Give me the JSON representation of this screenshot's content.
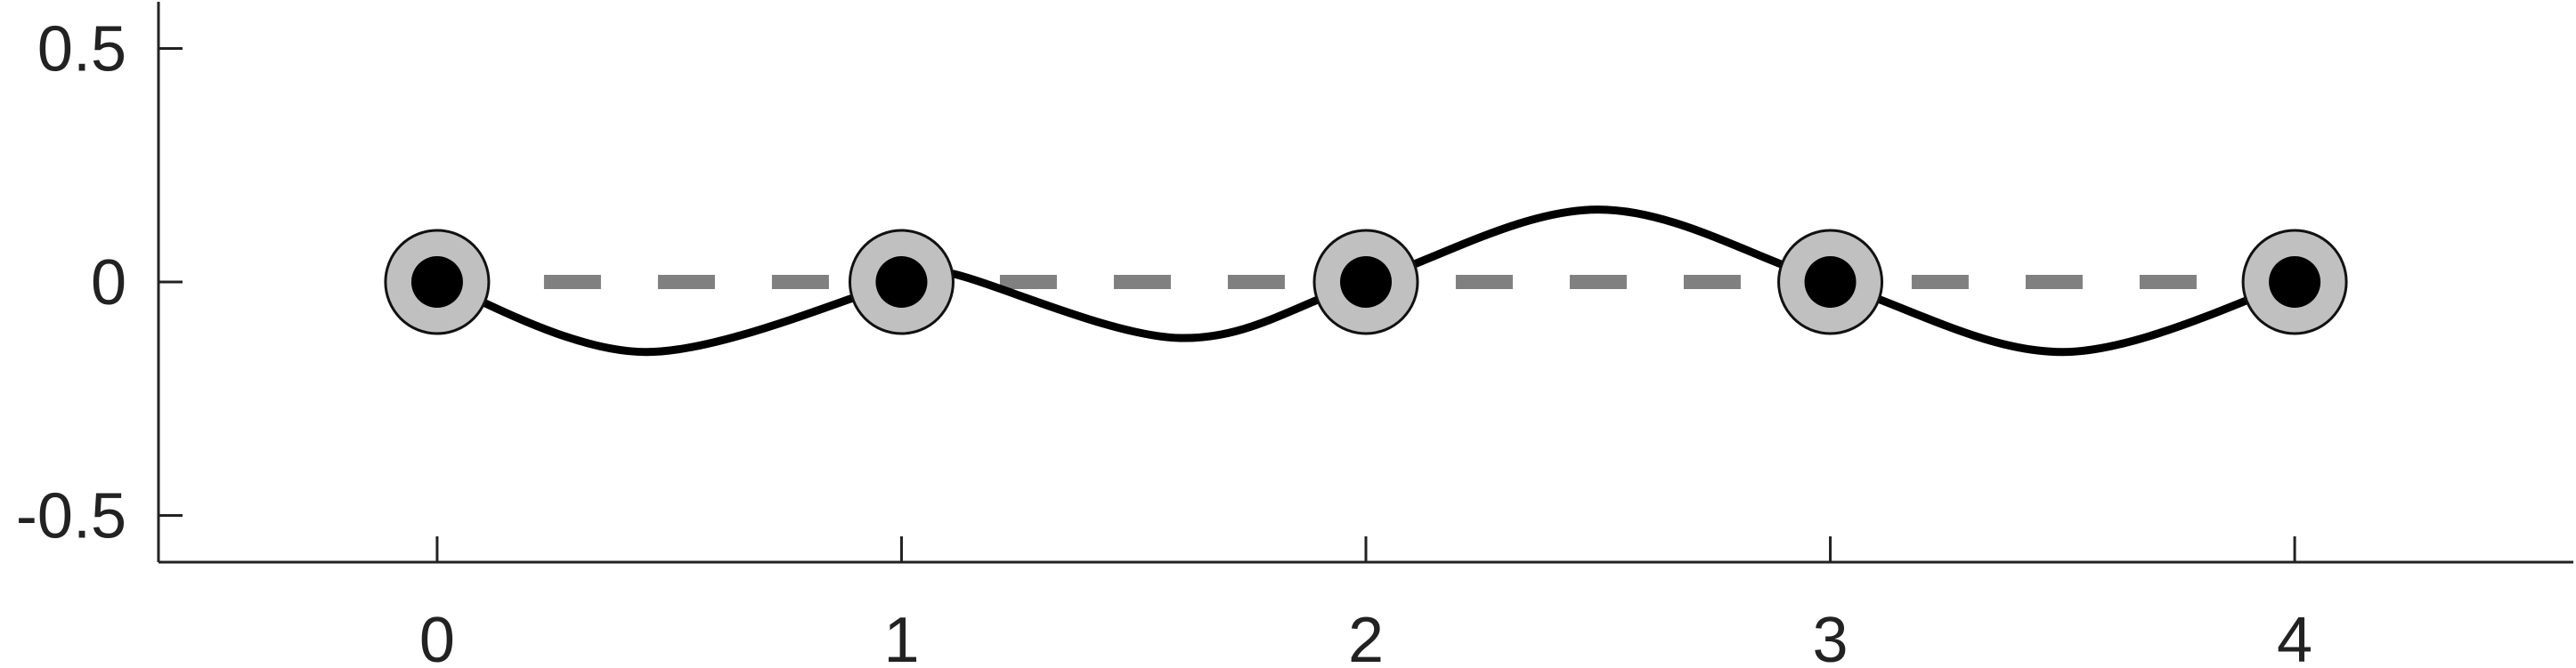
{
  "chart_data": {
    "type": "line",
    "title": "",
    "xlabel": "",
    "ylabel": "",
    "xlim": [
      -0.6,
      4.6
    ],
    "ylim": [
      -0.6,
      0.6
    ],
    "x_ticks": [
      0,
      1,
      2,
      3,
      4
    ],
    "x_tick_labels": [
      "0",
      "1",
      "2",
      "3",
      "4"
    ],
    "y_ticks": [
      0.5,
      0,
      -0.5
    ],
    "y_tick_labels": [
      "0.5",
      "0",
      "-0.5"
    ],
    "grid": false,
    "legend": "none",
    "series": [
      {
        "style": "dashed",
        "color": "#808080",
        "x": [
          0,
          4
        ],
        "y": [
          0,
          0
        ]
      },
      {
        "style": "solid",
        "color": "#000000",
        "x": [
          0,
          0.45,
          1.0,
          1.1,
          1.6,
          2.0,
          2.5,
          3.0,
          3.5,
          4.0
        ],
        "y": [
          0,
          -0.15,
          0,
          0.02,
          -0.12,
          0,
          0.155,
          0,
          -0.15,
          0
        ]
      }
    ],
    "markers": {
      "style": "filled circle with gray halo",
      "halo_color": "#c0c0c0",
      "dot_color": "#000000",
      "x": [
        0,
        1,
        2,
        3,
        4
      ],
      "y": [
        0,
        0,
        0,
        0,
        0
      ]
    }
  }
}
